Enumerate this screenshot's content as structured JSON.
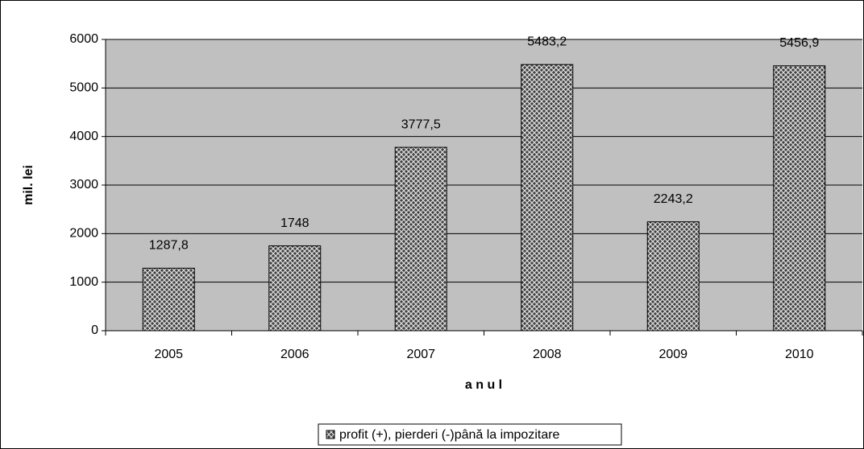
{
  "chart_data": {
    "type": "bar",
    "categories": [
      "2005",
      "2006",
      "2007",
      "2008",
      "2009",
      "2010"
    ],
    "series": [
      {
        "name": "profit (+), pierderi (-)până la impozitare",
        "color": "#404040",
        "values": [
          1287.8,
          1748,
          3777.5,
          5483.2,
          2243.2,
          5456.9
        ],
        "value_labels": [
          "1287,8",
          "1748",
          "3777,5",
          "5483,2",
          "2243,2",
          "5456,9"
        ]
      }
    ],
    "ylabel": "mil. lei",
    "xlabel": "a n u l",
    "ylim": [
      0,
      6000
    ],
    "yticks": [
      0,
      1000,
      2000,
      3000,
      4000,
      5000,
      6000
    ],
    "grid": true,
    "legend": "bottom"
  }
}
